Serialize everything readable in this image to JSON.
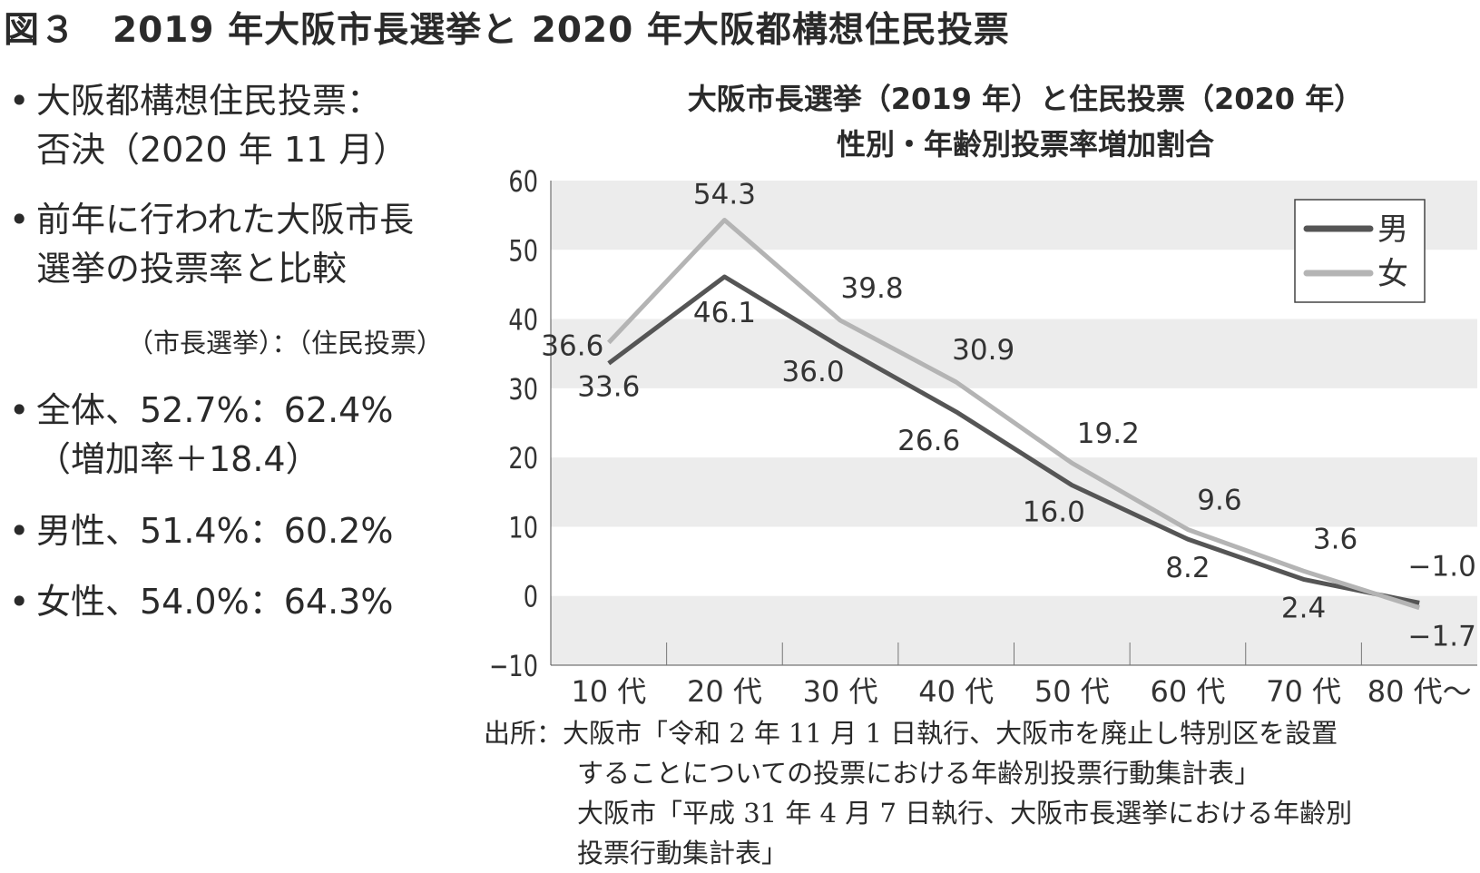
{
  "title": "図３　2019 年大阪市長選挙と 2020 年大阪都構想住民投票",
  "bullets": {
    "b1a": "大阪都構想住民投票：",
    "b1b": "否決（2020 年 11 月）",
    "b2a": "前年に行われた大阪市長",
    "b2b": "選挙の投票率と比較",
    "header": "（市長選挙）：（住民投票）",
    "b3a": "全体、52.7%：62.4%",
    "b3b": "（増加率＋18.4）",
    "b4": "男性、51.4%：60.2%",
    "b5": "女性、54.0%：64.3%",
    "dot": "•"
  },
  "source": {
    "l1": "出所：大阪市「令和 2 年 11 月 1 日執行、大阪市を廃止し特別区を設置",
    "l2": "することについての投票における年齢別投票行動集計表」",
    "l3": "大阪市「平成 31 年 4 月 7 日執行、大阪市長選挙における年齢別",
    "l4": "投票行動集計表」"
  },
  "chart_data": {
    "type": "line",
    "title": "大阪市長選挙（2019 年）と住民投票（2020 年）",
    "subtitle": "性別・年齢別投票率増加割合",
    "categories": [
      "10 代",
      "20 代",
      "30 代",
      "40 代",
      "50 代",
      "60 代",
      "70 代",
      "80 代〜"
    ],
    "ylim": [
      -10,
      60
    ],
    "yticks": [
      -10,
      0,
      10,
      20,
      30,
      40,
      50,
      60
    ],
    "legend_position": "top-right",
    "series": [
      {
        "name": "男",
        "color": "#555555",
        "values": [
          33.6,
          46.1,
          36.0,
          26.6,
          16.0,
          8.2,
          2.4,
          -1.0
        ],
        "labels": [
          "33.6",
          "46.1",
          "36.0",
          "26.6",
          "16.0",
          "8.2",
          "2.4",
          "−1.0"
        ]
      },
      {
        "name": "女",
        "color": "#b4b4b4",
        "values": [
          36.6,
          54.3,
          39.8,
          30.9,
          19.2,
          9.6,
          3.6,
          -1.7
        ],
        "labels": [
          "36.6",
          "54.3",
          "39.8",
          "30.9",
          "19.2",
          "9.6",
          "3.6",
          "−1.7"
        ]
      }
    ]
  }
}
